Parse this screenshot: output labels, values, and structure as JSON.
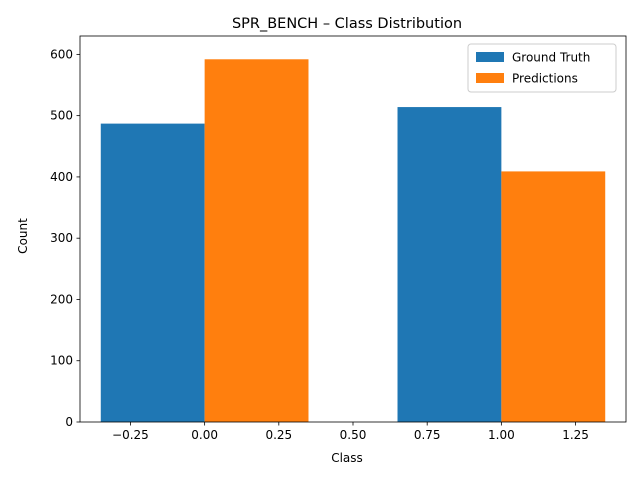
{
  "chart_data": {
    "type": "bar",
    "title": "SPR_BENCH – Class Distribution",
    "xlabel": "Class",
    "ylabel": "Count",
    "xlim": [
      -0.42,
      1.42
    ],
    "ylim": [
      0,
      630
    ],
    "xticks": [
      -0.25,
      0.0,
      0.25,
      0.5,
      0.75,
      1.0,
      1.25
    ],
    "xtick_labels": [
      "−0.25",
      "0.00",
      "0.25",
      "0.50",
      "0.75",
      "1.00",
      "1.25"
    ],
    "yticks": [
      0,
      100,
      200,
      300,
      400,
      500,
      600
    ],
    "ytick_labels": [
      "0",
      "100",
      "200",
      "300",
      "400",
      "500",
      "600"
    ],
    "bar_width": 0.35,
    "categories": [
      0,
      1
    ],
    "series": [
      {
        "name": "Ground Truth",
        "color": "#1f77b4",
        "offset": -0.175,
        "values": [
          487,
          514
        ]
      },
      {
        "name": "Predictions",
        "color": "#ff7f0e",
        "offset": 0.175,
        "values": [
          592,
          409
        ]
      }
    ],
    "legend_position": "top-right",
    "grid": false
  }
}
